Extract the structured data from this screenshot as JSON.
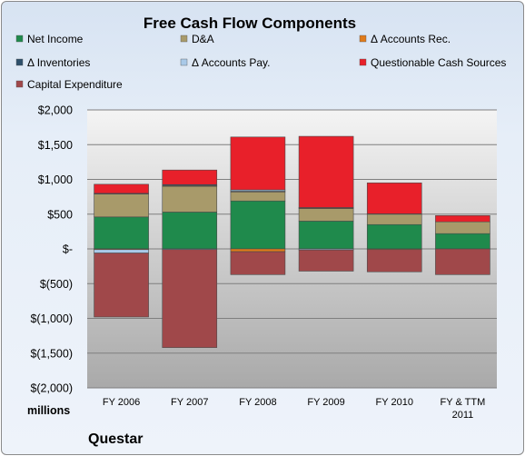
{
  "chart_data": {
    "type": "bar",
    "stacked": true,
    "title": "Free Cash Flow Components",
    "units_label": "millions",
    "company": "Questar",
    "categories": [
      "FY 2006",
      "FY 2007",
      "FY 2008",
      "FY 2009",
      "FY 2010",
      "FY & TTM 2011"
    ],
    "ylim": [
      -2000,
      2000
    ],
    "yticks": [
      2000,
      1500,
      1000,
      500,
      0,
      -500,
      -1000,
      -1500,
      -2000
    ],
    "ytick_labels": [
      "$2,000",
      "$1,500",
      "$1,000",
      "$500",
      "$-",
      "$(500)",
      "$(1,000)",
      "$(1,500)",
      "$(2,000)"
    ],
    "grid": true,
    "legend_position": "top",
    "series": [
      {
        "name": "Net Income",
        "color": "#1f8a4c",
        "values": [
          460,
          530,
          690,
          400,
          350,
          220
        ]
      },
      {
        "name": "D&A",
        "color": "#a89a6a",
        "values": [
          330,
          370,
          130,
          180,
          150,
          170
        ]
      },
      {
        "name": "Δ Accounts Rec.",
        "color": "#e07b1a",
        "values": [
          -10,
          10,
          -40,
          10,
          -10,
          0
        ]
      },
      {
        "name": "Δ Inventories",
        "color": "#2d4f6b",
        "values": [
          10,
          15,
          10,
          5,
          5,
          0
        ]
      },
      {
        "name": "Δ Accounts Pay.",
        "color": "#a9c9e8",
        "values": [
          -50,
          -10,
          20,
          -15,
          0,
          0
        ]
      },
      {
        "name": "Questionable Cash Sources",
        "color": "#e8202a",
        "values": [
          130,
          210,
          760,
          1025,
          445,
          90
        ]
      },
      {
        "name": "Capital Expenditure",
        "color": "#a0484a",
        "values": [
          -920,
          -1410,
          -330,
          -305,
          -320,
          -370
        ]
      }
    ]
  }
}
